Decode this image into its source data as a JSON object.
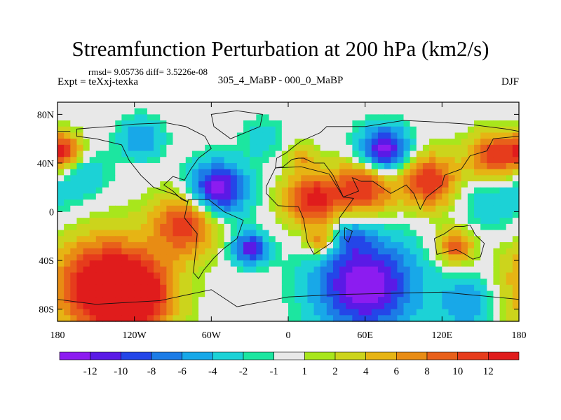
{
  "chart_data": {
    "type": "heatmap",
    "title": "Streamfunction Perturbation at 200 hPa (km2/s)",
    "stats_label": "rmsd= 9.05736 diff= 3.5226e-08",
    "experiment_label": "Expt = teXxj-texka",
    "comparison_label": "305_4_MaBP - 000_0_MaBP",
    "season_label": "DJF",
    "x_axis": {
      "range": [
        -180,
        180
      ],
      "ticks": [
        {
          "value": -180,
          "label": "180"
        },
        {
          "value": -120,
          "label": "120W"
        },
        {
          "value": -60,
          "label": "60W"
        },
        {
          "value": 0,
          "label": "0"
        },
        {
          "value": 60,
          "label": "60E"
        },
        {
          "value": 120,
          "label": "120E"
        },
        {
          "value": 180,
          "label": "180"
        }
      ]
    },
    "y_axis": {
      "range": [
        -90,
        90
      ],
      "ticks": [
        {
          "value": 80,
          "label": "80N"
        },
        {
          "value": 40,
          "label": "40N"
        },
        {
          "value": 0,
          "label": "0"
        },
        {
          "value": -40,
          "label": "40S"
        },
        {
          "value": -80,
          "label": "80S"
        }
      ]
    },
    "colorbar": {
      "levels": [
        -12,
        -10,
        -8,
        -6,
        -4,
        -2,
        -1,
        1,
        2,
        4,
        6,
        8,
        10,
        12
      ],
      "level_labels": [
        "-12",
        "-10",
        "-8",
        "-6",
        "-4",
        "-2",
        "-1",
        "1",
        "2",
        "4",
        "6",
        "8",
        "10",
        "12"
      ],
      "colors": [
        "#8c1cf0",
        "#5a1ae6",
        "#2446e8",
        "#1c7ce6",
        "#18a8e8",
        "#1cd2d6",
        "#1ce6a0",
        "#e8e8e8",
        "#a8e61c",
        "#ccd41c",
        "#e6b414",
        "#e88c14",
        "#e8601a",
        "#e63c1c",
        "#e01c1c"
      ]
    },
    "field_features": [
      {
        "lon": -145,
        "lat": -60,
        "value": 14,
        "spread": 28
      },
      {
        "lon": -120,
        "lat": -70,
        "value": 12,
        "spread": 22
      },
      {
        "lon": -80,
        "lat": -10,
        "value": 12,
        "spread": 18
      },
      {
        "lon": -55,
        "lat": 18,
        "value": -14,
        "spread": 16
      },
      {
        "lon": -30,
        "lat": -30,
        "value": -11,
        "spread": 10
      },
      {
        "lon": 20,
        "lat": 10,
        "value": 13,
        "spread": 16
      },
      {
        "lon": 60,
        "lat": 20,
        "value": 12,
        "spread": 16
      },
      {
        "lon": 110,
        "lat": 25,
        "value": 12,
        "spread": 16
      },
      {
        "lon": 160,
        "lat": 45,
        "value": 12,
        "spread": 14
      },
      {
        "lon": -175,
        "lat": 50,
        "value": 11,
        "spread": 10
      },
      {
        "lon": 75,
        "lat": 50,
        "value": -14,
        "spread": 14
      },
      {
        "lon": 60,
        "lat": -60,
        "value": -14,
        "spread": 28
      },
      {
        "lon": 140,
        "lat": -75,
        "value": -6,
        "spread": 16
      },
      {
        "lon": 130,
        "lat": -28,
        "value": 10,
        "spread": 10
      },
      {
        "lon": -115,
        "lat": 60,
        "value": -6,
        "spread": 12
      },
      {
        "lon": -160,
        "lat": 30,
        "value": -4,
        "spread": 14
      },
      {
        "lon": 160,
        "lat": 10,
        "value": -4,
        "spread": 20
      },
      {
        "lon": 50,
        "lat": -20,
        "value": -4,
        "spread": 10
      },
      {
        "lon": 25,
        "lat": -25,
        "value": 8,
        "spread": 8
      },
      {
        "lon": -20,
        "lat": 60,
        "value": -3,
        "spread": 12
      },
      {
        "lon": 10,
        "lat": 45,
        "value": 5,
        "spread": 8
      }
    ]
  }
}
